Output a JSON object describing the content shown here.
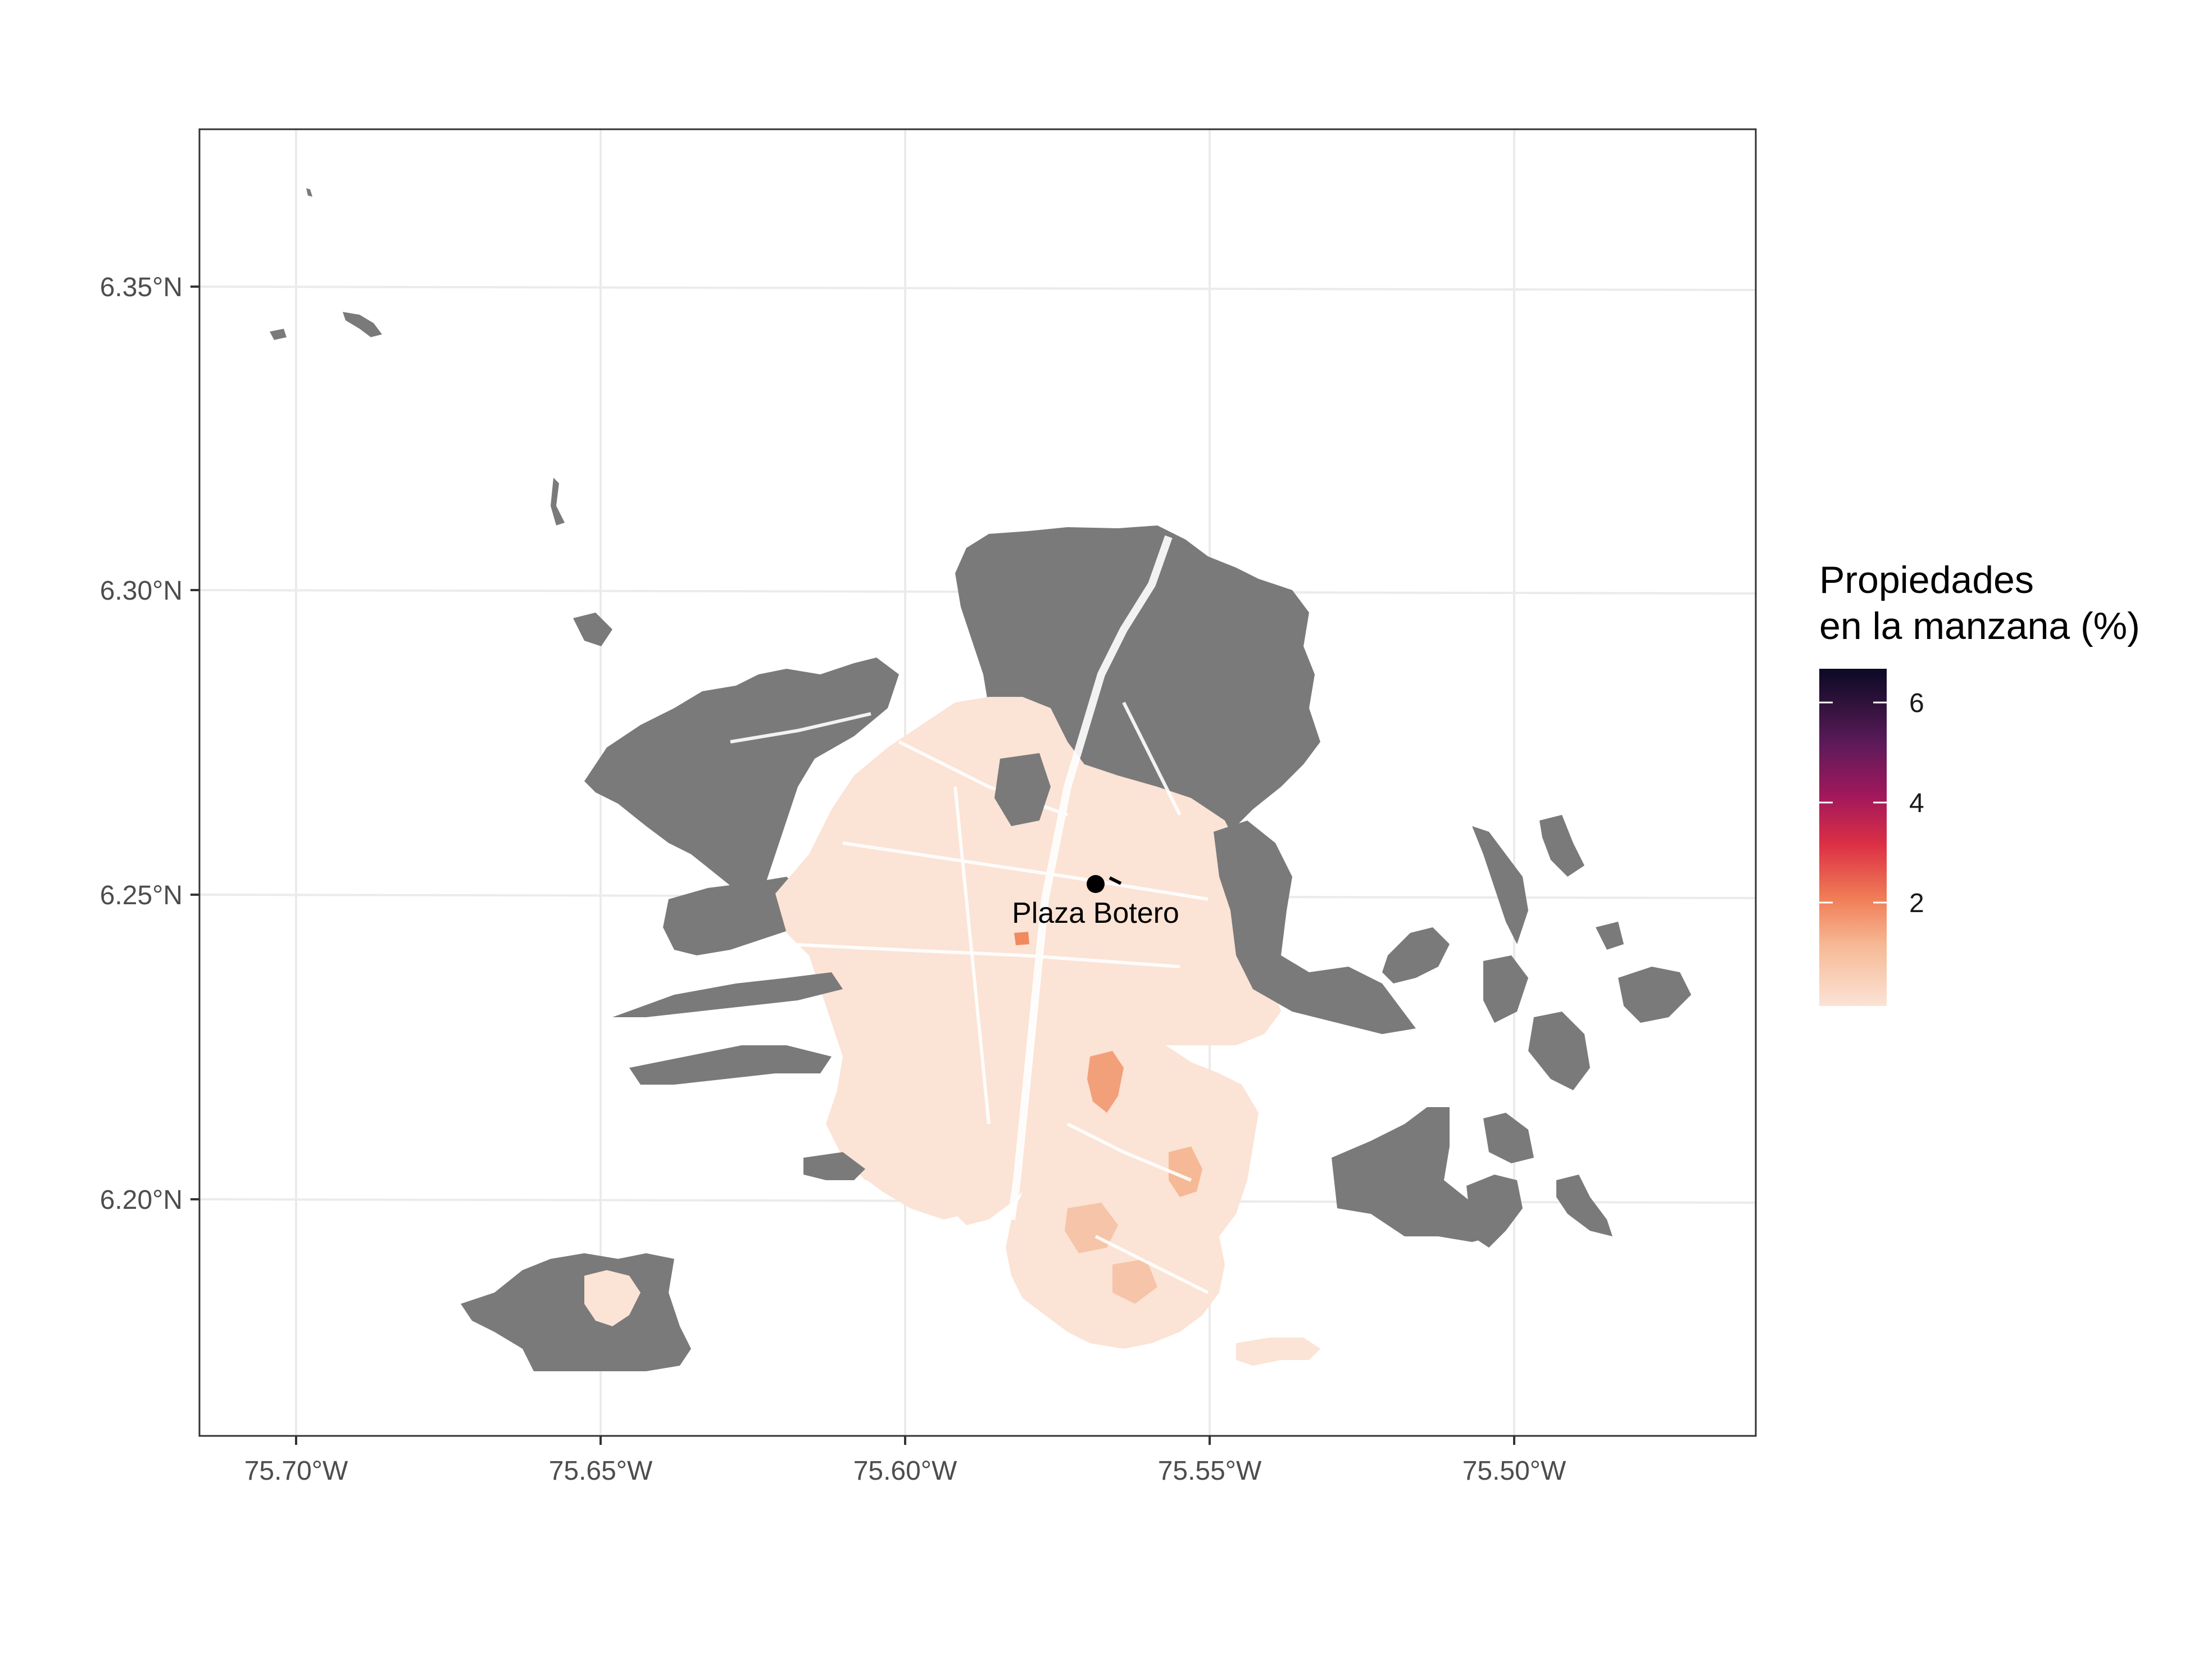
{
  "map": {
    "x_ticks": [
      "75.70°W",
      "75.65°W",
      "75.60°W",
      "75.55°W",
      "75.50°W"
    ],
    "y_ticks": [
      "6.35°N",
      "6.30°N",
      "6.25°N",
      "6.20°N"
    ],
    "place_label": "Plaza Botero",
    "colors": {
      "no_data": "#7a7a7a",
      "low": "#fbe3d5",
      "mid_low": "#f6c4a8",
      "mid": "#f08a5f",
      "high": "#d5265c",
      "max": "#0c0927",
      "grid": "#ebebeb",
      "frame": "#333333",
      "street": "#ffffff"
    }
  },
  "legend": {
    "title_line1": "Propiedades",
    "title_line2": "en la manzana (%)",
    "ticks": [
      "2",
      "4",
      "6"
    ]
  },
  "chart_data": {
    "type": "choropleth",
    "x_axis": {
      "ticks": [
        "75.70°W",
        "75.65°W",
        "75.60°W",
        "75.55°W",
        "75.50°W"
      ]
    },
    "y_axis": {
      "ticks": [
        "6.35°N",
        "6.30°N",
        "6.25°N",
        "6.20°N"
      ]
    },
    "legend": {
      "title": "Propiedades en la manzana (%)",
      "range": [
        0,
        6.8
      ],
      "ticks": [
        2,
        4,
        6
      ],
      "scale": "rocket (light to dark)"
    },
    "grid": true,
    "point": {
      "label": "Plaza Botero",
      "lon": -75.5683,
      "lat": 6.2523
    }
  }
}
